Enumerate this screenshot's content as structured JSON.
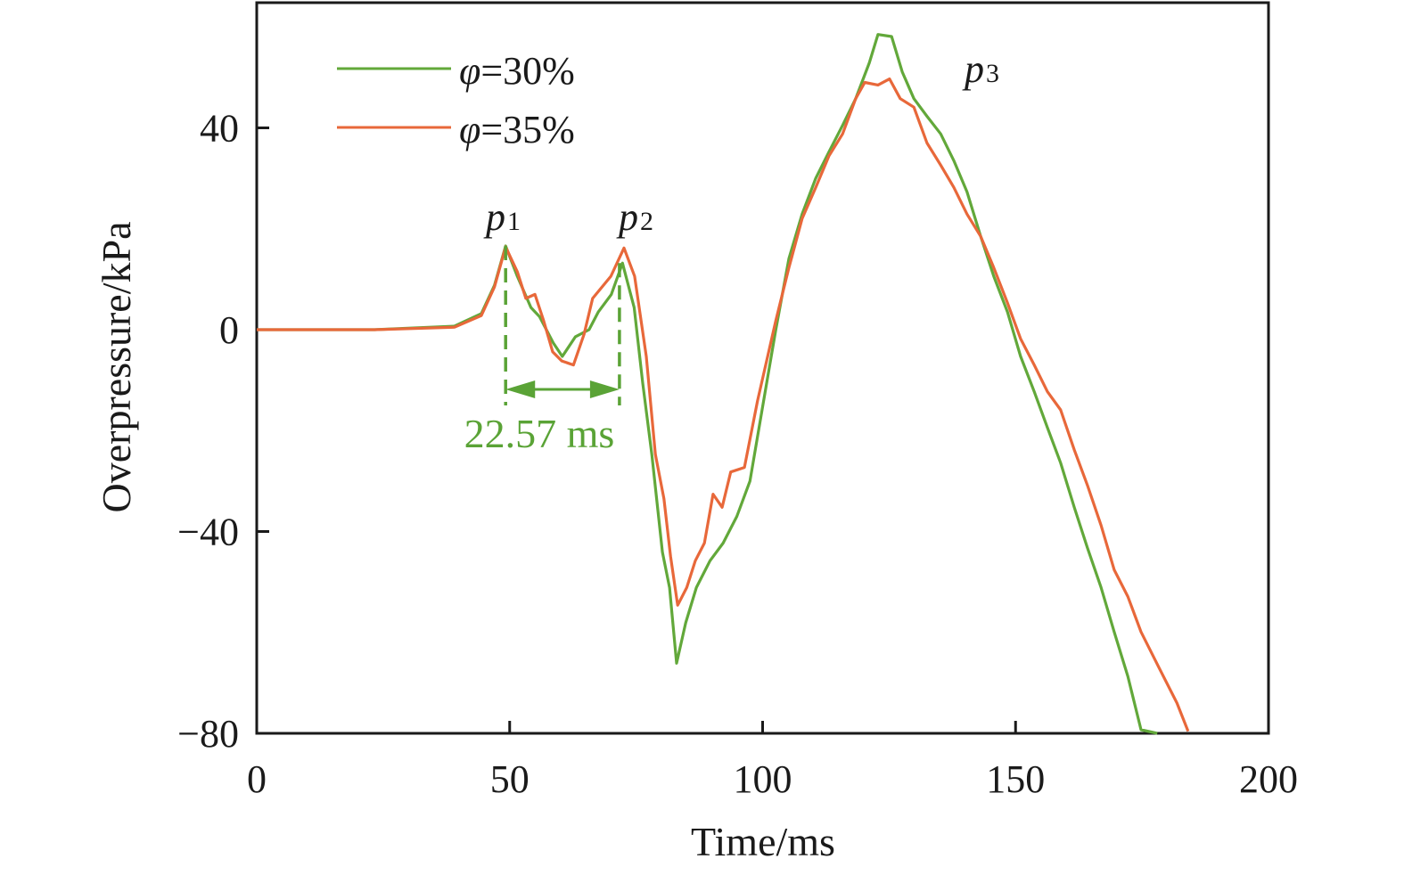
{
  "chart_data": {
    "type": "line",
    "title": "",
    "xlabel": "Time/ms",
    "ylabel": "Overpressure/kPa",
    "xlim": [
      0,
      200
    ],
    "ylim": [
      -80,
      65
    ],
    "xticks": [
      0,
      50,
      100,
      150,
      200
    ],
    "xtick_labels": [
      "0",
      "50",
      "100",
      "150",
      "200"
    ],
    "yticks": [
      -80,
      -40,
      0,
      40
    ],
    "ytick_labels": [
      "−80",
      "−40",
      "0",
      "40"
    ],
    "grid": false,
    "legend_position": "top-left",
    "series": [
      {
        "name": "φ=30%",
        "legend_symbol": "φ",
        "legend_rest": "=30%",
        "color": "#62a83a",
        "x": [
          0,
          23.3,
          39.1,
          44.4,
          47.0,
          49.2,
          51.5,
          54.2,
          55.9,
          58.6,
          60.4,
          63.0,
          65.7,
          67.5,
          70.1,
          72.3,
          74.6,
          76.3,
          78.1,
          80.2,
          81.6,
          83.0,
          84.8,
          86.9,
          89.6,
          92.2,
          94.9,
          97.5,
          99.9,
          102.6,
          105.2,
          107.8,
          110.5,
          113.1,
          115.8,
          118.4,
          121.1,
          122.8,
          125.5,
          127.6,
          129.9,
          132.5,
          135.2,
          137.8,
          140.4,
          143.1,
          145.7,
          148.4,
          151.0,
          153.7,
          156.3,
          158.9,
          161.6,
          164.2,
          166.9,
          169.5,
          172.2,
          174.8,
          178.0
        ],
        "y": [
          0,
          0,
          0.7,
          3.2,
          8.8,
          16.6,
          10.6,
          4.4,
          2.6,
          -2.6,
          -5.3,
          -1.4,
          0,
          3.5,
          7.0,
          13.2,
          4.4,
          -10.6,
          -24.7,
          -44.1,
          -51.1,
          -66.1,
          -58.1,
          -51.1,
          -45.8,
          -42.3,
          -37.0,
          -30.0,
          -15.9,
          0,
          14.1,
          22.9,
          30.0,
          35.2,
          40.5,
          45.8,
          52.9,
          58.5,
          58.1,
          51.1,
          45.8,
          42.3,
          38.8,
          33.5,
          27.3,
          18.5,
          10.6,
          3.5,
          -5.3,
          -12.3,
          -19.4,
          -26.4,
          -35.2,
          -43.2,
          -51.1,
          -59.9,
          -68.7,
          -79.3,
          -80
        ]
      },
      {
        "name": "φ=35%",
        "legend_symbol": "φ",
        "legend_rest": "=35%",
        "color": "#e8683a",
        "x": [
          0,
          23.3,
          39.1,
          44.4,
          47.0,
          49.2,
          51.5,
          53.2,
          55.0,
          56.7,
          58.5,
          60.3,
          62.6,
          64.7,
          66.4,
          70.0,
          72.6,
          74.7,
          77.0,
          78.8,
          80.5,
          81.8,
          83.2,
          85.0,
          86.7,
          88.5,
          90.2,
          92.0,
          93.7,
          96.4,
          99.0,
          102.6,
          105.2,
          107.8,
          110.5,
          113.1,
          115.8,
          118.4,
          120.2,
          122.8,
          125.1,
          127.2,
          129.9,
          132.5,
          135.2,
          137.8,
          140.4,
          143.1,
          145.7,
          148.4,
          151.0,
          153.7,
          156.3,
          158.9,
          161.6,
          164.2,
          166.9,
          169.5,
          172.2,
          174.8,
          178.3,
          181.9,
          184.1
        ],
        "y": [
          0,
          0,
          0.5,
          2.8,
          8.5,
          16.4,
          11.5,
          6.2,
          7.0,
          1.8,
          -4.4,
          -6.2,
          -7.0,
          -0.9,
          6.2,
          10.6,
          16.2,
          10.6,
          -5.3,
          -24.7,
          -33.5,
          -44.9,
          -54.6,
          -51.1,
          -45.8,
          -42.3,
          -32.6,
          -35.2,
          -28.2,
          -27.3,
          -14.1,
          1.8,
          12.3,
          22.0,
          28.2,
          34.4,
          38.8,
          45.8,
          49.0,
          48.5,
          49.7,
          45.8,
          44.1,
          37.0,
          32.6,
          28.2,
          22.9,
          18.5,
          12.3,
          5.3,
          -1.8,
          -7.0,
          -12.3,
          -15.9,
          -23.8,
          -30.8,
          -38.8,
          -47.6,
          -52.9,
          -59.9,
          -66.9,
          -74.0,
          -79.6
        ]
      }
    ],
    "annotations": {
      "p1": {
        "letter": "p",
        "sub": "1",
        "x": 49.2,
        "y": 16.6
      },
      "p2": {
        "letter": "p",
        "sub": "2",
        "x": 72.6,
        "y": 16.2
      },
      "p3": {
        "letter": "p",
        "sub": "3",
        "x": 126,
        "y": 58.5
      },
      "interval": {
        "text": "22.57 ms",
        "x_start": 49.2,
        "x_end": 71.7,
        "y": -12,
        "color": "#5aa336"
      }
    }
  }
}
